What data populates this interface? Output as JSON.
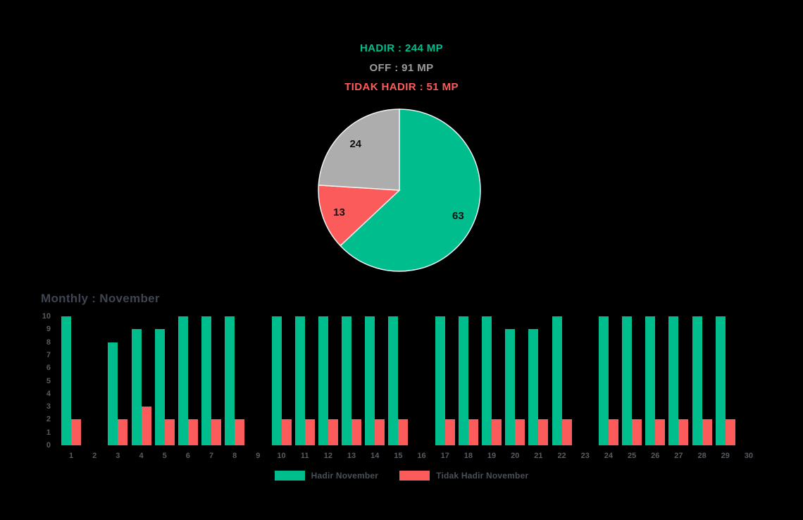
{
  "page": {
    "background": "#000000"
  },
  "summary": {
    "hadir": "HADIR : 244 MP",
    "off": "OFF : 91 MP",
    "tidak_hadir": "TIDAK HADIR : 51 MP",
    "colors": {
      "hadir": "#00BD8E",
      "off": "#9C9C9C",
      "tidak_hadir": "#FB5B5B"
    }
  },
  "chart_data": [
    {
      "type": "pie",
      "title": "",
      "slices": [
        {
          "name": "HADIR",
          "value": 63,
          "label": "63",
          "color": "#00BD8E"
        },
        {
          "name": "TIDAK HADIR",
          "value": 13,
          "label": "13",
          "color": "#FB5B5B"
        },
        {
          "name": "OFF",
          "value": 24,
          "label": "24",
          "color": "#ADADAD"
        }
      ],
      "start_angle_deg": 0,
      "direction": "clockwise",
      "label_color": "#111111",
      "stroke_color": "#F2F2F2",
      "legend_position": "none"
    },
    {
      "type": "bar",
      "title": "Monthly : November",
      "categories": [
        "1",
        "2",
        "3",
        "4",
        "5",
        "6",
        "7",
        "8",
        "9",
        "10",
        "11",
        "12",
        "13",
        "14",
        "15",
        "16",
        "17",
        "18",
        "19",
        "20",
        "21",
        "22",
        "23",
        "24",
        "25",
        "26",
        "27",
        "28",
        "29",
        "30"
      ],
      "series": [
        {
          "name": "Hadir November",
          "color": "#00BD8E",
          "values": [
            10,
            0,
            8,
            9,
            9,
            10,
            10,
            10,
            0,
            10,
            10,
            10,
            10,
            10,
            10,
            0,
            10,
            10,
            10,
            9,
            9,
            10,
            0,
            10,
            10,
            10,
            10,
            10,
            10,
            0
          ]
        },
        {
          "name": "Tidak Hadir November",
          "color": "#FB5B5B",
          "values": [
            2,
            0,
            2,
            3,
            2,
            2,
            2,
            2,
            0,
            2,
            2,
            2,
            2,
            2,
            2,
            0,
            2,
            2,
            2,
            2,
            2,
            2,
            0,
            2,
            2,
            2,
            2,
            2,
            2,
            0
          ]
        }
      ],
      "xlabel": "",
      "ylabel": "",
      "ylim": [
        0,
        10
      ],
      "yticks": [
        0,
        1,
        2,
        3,
        4,
        5,
        6,
        7,
        8,
        9,
        10
      ],
      "grid": false,
      "legend_position": "bottom"
    }
  ]
}
